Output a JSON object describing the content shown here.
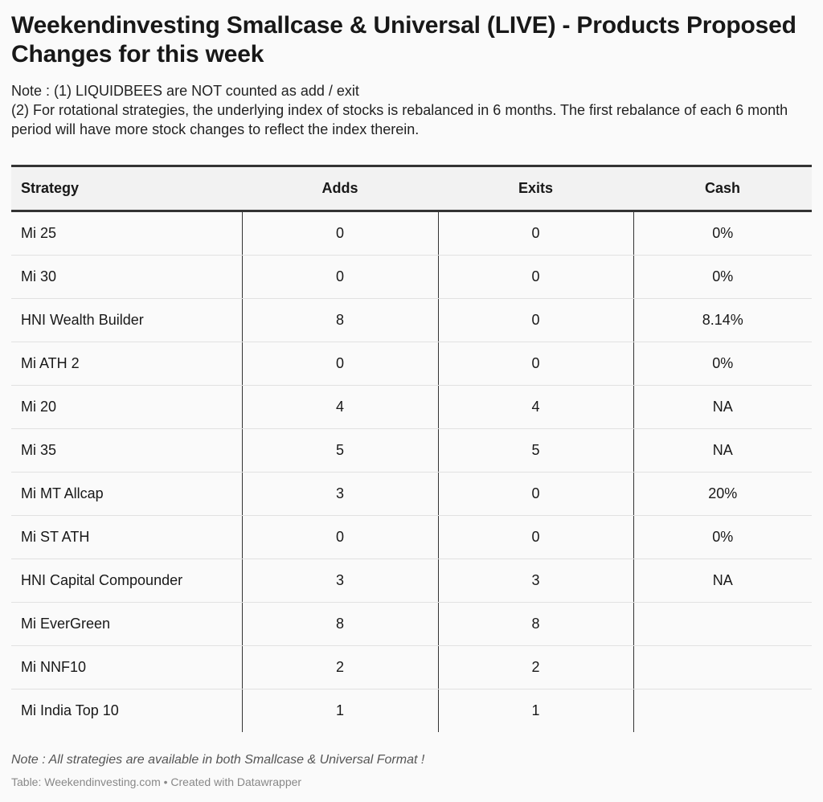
{
  "title": "Weekendinvesting Smallcase & Universal (LIVE) - Products Proposed Changes for this week",
  "notes": [
    "Note : (1) LIQUIDBEES are NOT counted as add / exit",
    "(2) For rotational strategies, the underlying index of stocks is rebalanced in 6 months. The first rebalance of each 6 month period will have more stock changes to reflect the index therein."
  ],
  "chart_data": {
    "type": "table",
    "columns": [
      "Strategy",
      "Adds",
      "Exits",
      "Cash"
    ],
    "rows": [
      {
        "strategy": "Mi 25",
        "adds": "0",
        "exits": "0",
        "cash": "0%"
      },
      {
        "strategy": "Mi 30",
        "adds": "0",
        "exits": "0",
        "cash": "0%"
      },
      {
        "strategy": "HNI Wealth Builder",
        "adds": "8",
        "exits": "0",
        "cash": "8.14%"
      },
      {
        "strategy": "Mi ATH 2",
        "adds": "0",
        "exits": "0",
        "cash": "0%"
      },
      {
        "strategy": "Mi 20",
        "adds": "4",
        "exits": "4",
        "cash": "NA"
      },
      {
        "strategy": "Mi 35",
        "adds": "5",
        "exits": "5",
        "cash": "NA"
      },
      {
        "strategy": "Mi MT Allcap",
        "adds": "3",
        "exits": "0",
        "cash": "20%"
      },
      {
        "strategy": "Mi ST ATH",
        "adds": "0",
        "exits": "0",
        "cash": "0%"
      },
      {
        "strategy": "HNI Capital Compounder",
        "adds": "3",
        "exits": "3",
        "cash": "NA"
      },
      {
        "strategy": "Mi EverGreen",
        "adds": "8",
        "exits": "8",
        "cash": ""
      },
      {
        "strategy": "Mi NNF10",
        "adds": "2",
        "exits": "2",
        "cash": ""
      },
      {
        "strategy": "Mi India Top 10",
        "adds": "1",
        "exits": "1",
        "cash": ""
      }
    ]
  },
  "footnote": "Note : All strategies are available in both Smallcase & Universal Format !",
  "source": "Table: Weekendinvesting.com • Created with Datawrapper"
}
